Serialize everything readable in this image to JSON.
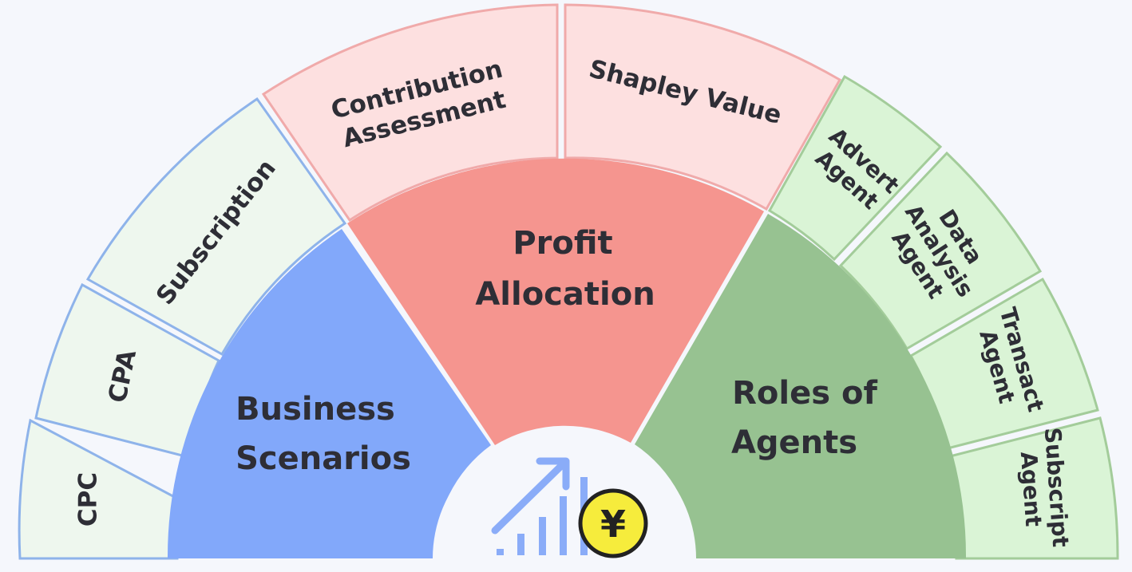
{
  "center_icon": {
    "icon": "growth-chart-icon",
    "coin_symbol": "¥",
    "coin_icon": "yuan-coin-icon",
    "chart_color": "#8aacf8",
    "coin_color": "#f6ec3c"
  },
  "segments": {
    "business": {
      "label_line1": "Business",
      "label_line2": "Scenarios",
      "fill": "#82a8fa",
      "outer_fill": "#eef7ee",
      "outer_stroke": "#8eb3ea",
      "items": [
        {
          "label": "CPC"
        },
        {
          "label": "CPA"
        },
        {
          "label": "Subscription"
        }
      ]
    },
    "profit": {
      "label_line1": "Profit",
      "label_line2": "Allocation",
      "fill": "#f5958f",
      "outer_fill": "#fde0e0",
      "outer_stroke": "#f0aaaa",
      "items": [
        {
          "line1": "Contribution",
          "line2": "Assessment"
        },
        {
          "label": "Shapley Value"
        }
      ]
    },
    "agents": {
      "label_line1": "Roles of",
      "label_line2": "Agents",
      "fill": "#97c291",
      "outer_fill": "#daf4d6",
      "outer_stroke": "#a3cc9a",
      "items": [
        {
          "line1": "Advert",
          "line2": "Agent"
        },
        {
          "line1": "Data",
          "line2": "Analysis",
          "line3": "Agent"
        },
        {
          "line1": "Transact",
          "line2": "Agent"
        },
        {
          "line1": "Subscript",
          "line2": "Agent"
        }
      ]
    }
  }
}
